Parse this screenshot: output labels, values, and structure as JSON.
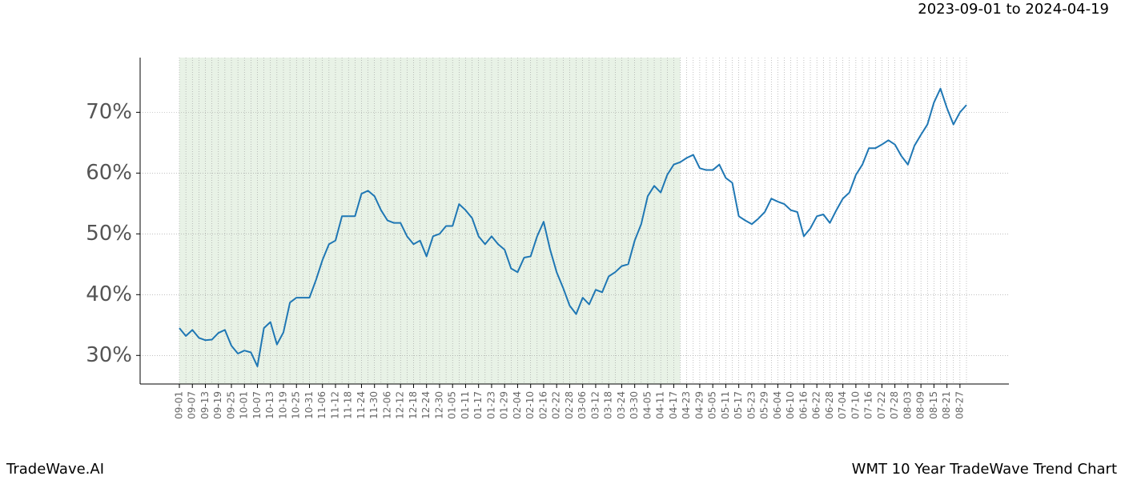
{
  "chart_data": {
    "type": "line",
    "title": "WMT 10 Year TradeWave Trend Chart",
    "subtitle": "2023-09-01 to 2024-04-19",
    "brand": "TradeWave.AI",
    "categories": [
      "09-01",
      null,
      "09-07",
      null,
      "09-13",
      null,
      "09-19",
      null,
      "09-25",
      null,
      "10-01",
      null,
      "10-07",
      null,
      "10-13",
      null,
      "10-19",
      null,
      "10-25",
      null,
      "10-31",
      null,
      "11-06",
      null,
      "11-12",
      null,
      "11-18",
      null,
      "11-24",
      null,
      "11-30",
      null,
      "12-06",
      null,
      "12-12",
      null,
      "12-18",
      null,
      "12-24",
      null,
      "12-30",
      null,
      "01-05",
      null,
      "01-11",
      null,
      "01-17",
      null,
      "01-23",
      null,
      "01-29",
      null,
      "02-04",
      null,
      "02-10",
      null,
      "02-16",
      null,
      "02-22",
      null,
      "02-28",
      null,
      "03-06",
      null,
      "03-12",
      null,
      "03-18",
      null,
      "03-24",
      null,
      "03-30",
      null,
      "04-05",
      null,
      "04-11",
      null,
      "04-17",
      null,
      "04-23",
      null,
      "04-29",
      null,
      "05-05",
      null,
      "05-11",
      null,
      "05-17",
      null,
      "05-23",
      null,
      "05-29",
      null,
      "06-04",
      null,
      "06-10",
      null,
      "06-16",
      null,
      "06-22",
      null,
      "06-28",
      null,
      "07-04",
      null,
      "07-10",
      null,
      "07-16",
      null,
      "07-22",
      null,
      "07-28",
      null,
      "08-03",
      null,
      "08-09",
      null,
      "08-15",
      null,
      "08-21",
      null,
      "08-27",
      null
    ],
    "series": [
      {
        "color": "#1f77b4",
        "values": [
          34.5,
          33.2,
          34.2,
          32.9,
          32.5,
          32.6,
          33.7,
          34.2,
          31.6,
          30.3,
          30.8,
          30.5,
          28.2,
          34.5,
          35.5,
          31.8,
          33.8,
          38.7,
          39.5,
          39.5,
          39.5,
          42.4,
          45.7,
          48.3,
          48.9,
          52.9,
          52.9,
          52.9,
          56.6,
          57.1,
          56.2,
          53.9,
          52.2,
          51.8,
          51.8,
          49.6,
          48.3,
          48.9,
          46.3,
          49.6,
          50.0,
          51.3,
          51.3,
          54.9,
          53.9,
          52.6,
          49.6,
          48.3,
          49.6,
          48.3,
          47.4,
          44.3,
          43.7,
          46.1,
          46.3,
          49.6,
          52.0,
          47.4,
          43.7,
          41.1,
          38.2,
          36.8,
          39.5,
          38.4,
          40.8,
          40.4,
          43.0,
          43.7,
          44.7,
          45.0,
          48.9,
          51.6,
          56.2,
          57.9,
          56.8,
          59.7,
          61.4,
          61.8,
          62.5,
          63.0,
          60.8,
          60.5,
          60.5,
          61.4,
          59.2,
          58.4,
          52.9,
          52.2,
          51.6,
          52.5,
          53.6,
          55.8,
          55.3,
          54.9,
          53.9,
          53.6,
          49.6,
          50.9,
          52.9,
          53.2,
          51.8,
          53.9,
          55.8,
          56.8,
          59.7,
          61.4,
          64.1,
          64.1,
          64.7,
          65.4,
          64.7,
          62.8,
          61.4,
          64.5,
          66.3,
          68.0,
          71.6,
          73.9,
          70.7,
          68.0,
          70.0,
          71.2
        ]
      }
    ],
    "highlight_end": 77,
    "highlight_color": "#e8f2e6",
    "ylim": [
      25.3,
      79.0
    ],
    "yticks": [
      {
        "value": 30,
        "label": "30%"
      },
      {
        "value": 40,
        "label": "40%"
      },
      {
        "value": 50,
        "label": "50%"
      },
      {
        "value": 60,
        "label": "60%"
      },
      {
        "value": 70,
        "label": "70%"
      }
    ],
    "grid": true
  }
}
